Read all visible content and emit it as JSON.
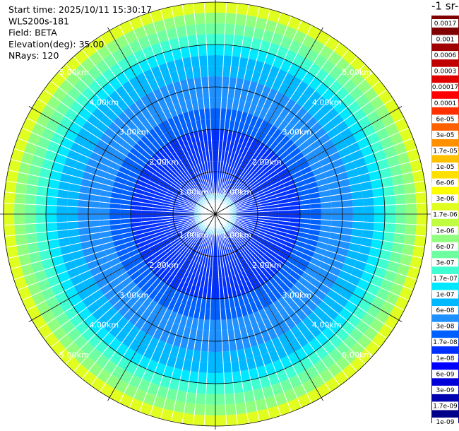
{
  "chart_data": {
    "type": "ppi",
    "header": [
      {
        "label": "Start time:",
        "value": "2025/10/11 15:30:17"
      },
      {
        "label": "WLS200s-181"
      },
      {
        "label": "Field:",
        "value": "BETA"
      },
      {
        "label": "Elevation(deg):",
        "value": "35.00"
      },
      {
        "label": "NRays:",
        "value": 120
      }
    ],
    "colorbar_title": "-1 sr-",
    "rlim": [
      0,
      5
    ],
    "rings": [
      {
        "value": 1,
        "label": "1.00km"
      },
      {
        "value": 2,
        "label": "2.00km"
      },
      {
        "value": 3,
        "label": "3.00km"
      },
      {
        "value": 4,
        "label": "4.00km"
      },
      {
        "value": 5,
        "label": "5.00km"
      }
    ],
    "range_km": [
      0.125,
      0.375,
      0.625,
      0.875,
      1.125,
      1.375,
      1.625,
      1.875,
      2.125,
      2.375,
      2.625,
      2.875,
      3.125,
      3.375,
      3.625,
      3.875,
      4.125,
      4.375,
      4.625,
      4.875
    ],
    "values": [
      8e-08,
      6e-08,
      1.5e-08,
      1.2e-08,
      1e-08,
      1.2e-08,
      1.5e-08,
      1.5e-08,
      2e-08,
      2.5e-08,
      3e-08,
      4e-08,
      5e-08,
      6e-08,
      8e-08,
      1.2e-07,
      2e-07,
      4e-07,
      8e-07,
      2e-06
    ],
    "colorbar_ticks": [
      0.0017,
      0.001,
      0.0006,
      0.0003,
      0.00017,
      0.0001,
      {
        "value": 6e-05,
        "label": "6e-05"
      },
      {
        "value": 3e-05,
        "label": "3e-05"
      },
      {
        "value": 1.7e-05,
        "label": "1.7e-05"
      },
      {
        "value": 1e-05,
        "label": "1e-05"
      },
      {
        "value": 6e-06,
        "label": "6e-06"
      },
      {
        "value": 3e-06,
        "label": "3e-06"
      },
      {
        "value": 1.7e-06,
        "label": "1.7e-06"
      },
      {
        "value": 1e-06,
        "label": "1e-06"
      },
      {
        "value": 6e-07,
        "label": "6e-07"
      },
      {
        "value": 3e-07,
        "label": "3e-07"
      },
      {
        "value": 1.7e-07,
        "label": "1.7e-07"
      },
      {
        "value": 1e-07,
        "label": "1e-07"
      },
      {
        "value": 6e-08,
        "label": "6e-08"
      },
      {
        "value": 3e-08,
        "label": "3e-08"
      },
      {
        "value": 1.7e-08,
        "label": "1.7e-08"
      },
      {
        "value": 1e-08,
        "label": "1e-08"
      },
      {
        "value": 6e-09,
        "label": "6e-09"
      },
      {
        "value": 3e-09,
        "label": "3e-09"
      },
      {
        "value": 1.7e-09,
        "label": "1.7e-09"
      },
      {
        "value": 1e-09,
        "label": "1e-09"
      }
    ],
    "colors": [
      "#7f0000",
      "#a00000",
      "#c00000",
      "#e00000",
      "#ff0000",
      "#ff3000",
      "#ff6000",
      "#ff9000",
      "#ffc000",
      "#ffe000",
      "#ffff00",
      "#e0ff20",
      "#c0ff40",
      "#90ff80",
      "#70ffa0",
      "#40ffd0",
      "#00e8ff",
      "#00b8ff",
      "#1e90ff",
      "#0060ff",
      "#0030ff",
      "#0000ff",
      "#0000d8",
      "#0000b0",
      "#000088"
    ]
  }
}
